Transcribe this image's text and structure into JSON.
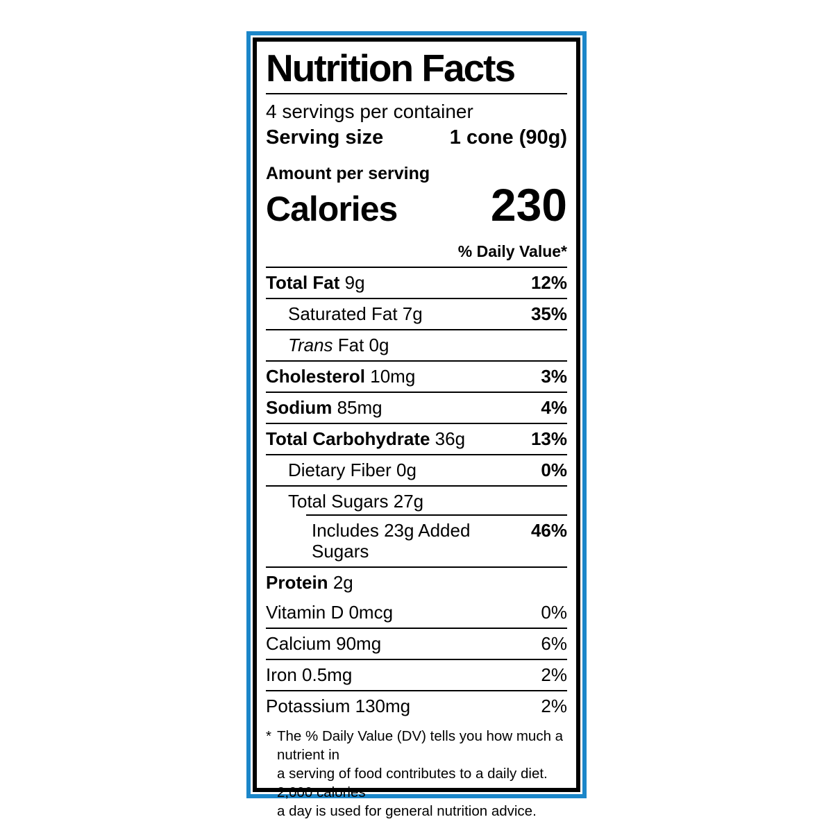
{
  "colors": {
    "frame_blue": "#1b86c9",
    "label_border": "#000000",
    "text": "#000000"
  },
  "header": {
    "title": "Nutrition Facts",
    "servings_per_container": "4 servings per container",
    "serving_size_label": "Serving size",
    "serving_size_value": "1 cone (90g)"
  },
  "calories_section": {
    "amount_per_serving": "Amount per serving",
    "calories_label": "Calories",
    "calories_value": "230"
  },
  "daily_value_header": "% Daily Value*",
  "nutrients": [
    {
      "bold_name": "Total Fat",
      "rest": "9g",
      "dv": "12%",
      "dv_bold": true,
      "indent": 0
    },
    {
      "rest": "Saturated Fat 7g",
      "dv": "35%",
      "dv_bold": true,
      "indent": 1
    },
    {
      "italic_name": "Trans",
      "rest": "Fat 0g",
      "dv": "",
      "indent": 1
    },
    {
      "bold_name": "Cholesterol",
      "rest": "10mg",
      "dv": "3%",
      "dv_bold": true,
      "indent": 0
    },
    {
      "bold_name": "Sodium",
      "rest": "85mg",
      "dv": "4%",
      "dv_bold": true,
      "indent": 0
    },
    {
      "bold_name": "Total Carbohydrate",
      "rest": "36g",
      "dv": "13%",
      "dv_bold": true,
      "indent": 0
    },
    {
      "rest": "Dietary Fiber 0g",
      "dv": "0%",
      "dv_bold": true,
      "indent": 1
    },
    {
      "rest": "Total Sugars 27g",
      "dv": "",
      "indent": 1
    },
    {
      "rest": "Includes 23g Added Sugars",
      "dv": "46%",
      "dv_bold": true,
      "indent": 2,
      "sep_indent": true
    },
    {
      "bold_name": "Protein",
      "rest": "2g",
      "dv": "",
      "indent": 0
    }
  ],
  "vitamins": [
    {
      "name": "Vitamin D 0mcg",
      "dv": "0%"
    },
    {
      "name": "Calcium 90mg",
      "dv": "6%"
    },
    {
      "name": "Iron 0.5mg",
      "dv": "2%"
    },
    {
      "name": "Potassium 130mg",
      "dv": "2%"
    }
  ],
  "footnote": {
    "star": "*",
    "text": "The % Daily Value (DV) tells you how much a nutrient in\na serving of food contributes to a daily diet. 2,000 calories\na day is used for general nutrition advice."
  }
}
